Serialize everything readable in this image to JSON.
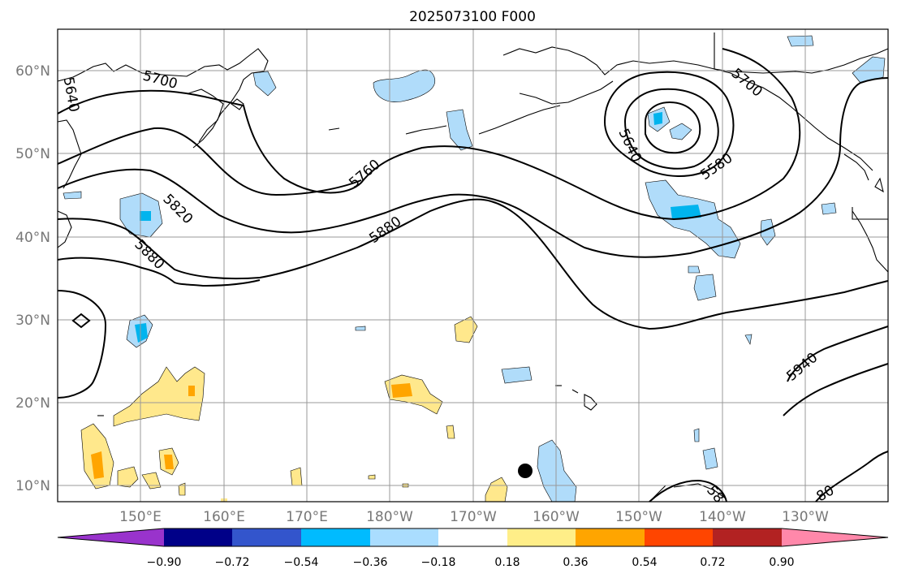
{
  "title": "2025073100 F000",
  "map": {
    "lat_ticks": [
      "10°N",
      "20°N",
      "30°N",
      "40°N",
      "50°N",
      "60°N"
    ],
    "lon_ticks": [
      "150°E",
      "160°E",
      "170°E",
      "180°W",
      "170°W",
      "160°W",
      "150°W",
      "140°W",
      "130°W"
    ],
    "contour_labels": [
      "5640",
      "5700",
      "5760",
      "5820",
      "5880",
      "5700",
      "5640",
      "5580",
      "5880",
      "5940",
      "58",
      "80"
    ]
  },
  "colorbar": {
    "tick_labels": [
      "−0.90",
      "−0.72",
      "−0.54",
      "−0.36",
      "−0.18",
      "0.18",
      "0.36",
      "0.54",
      "0.72",
      "0.90"
    ],
    "colors": [
      "#9933cc",
      "#000088",
      "#3355cc",
      "#00bbff",
      "#aaddff",
      "#ffffff",
      "#ffee88",
      "#ffa500",
      "#ff4500",
      "#b22222",
      "#ff88aa"
    ]
  },
  "legend_colors": {
    "light_blue": "#b0dcfa",
    "cyan": "#00b4ee",
    "light_yellow": "#ffe88c",
    "orange": "#ffa500"
  }
}
